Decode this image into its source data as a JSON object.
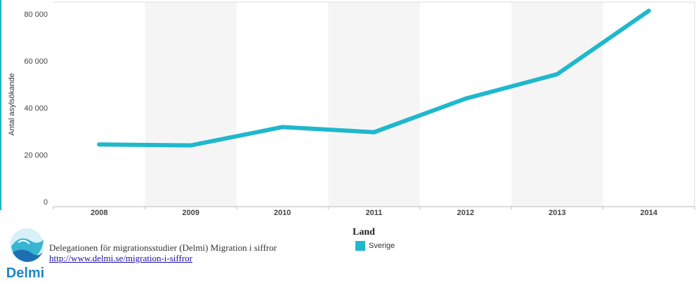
{
  "chart_data": {
    "type": "line",
    "categories": [
      "2008",
      "2009",
      "2010",
      "2011",
      "2012",
      "2013",
      "2014"
    ],
    "series": [
      {
        "name": "Sverige",
        "color": "#1fb8cd",
        "values": [
          24400,
          24000,
          31800,
          29600,
          43900,
          54300,
          81300
        ]
      }
    ],
    "ylabel": "Antal asylsökande",
    "ylim": [
      0,
      85000
    ],
    "yticks": [
      0,
      20000,
      40000,
      60000,
      80000
    ],
    "ytick_labels": [
      "0",
      "20 000",
      "40 000",
      "60 000",
      "80 000"
    ],
    "grid": "alternating vertical bands",
    "band_color": "#f5f5f5",
    "legend": {
      "title": "Land",
      "placement": "bottom-center"
    }
  },
  "footer": {
    "logo_text": "Delmi",
    "source_text": "Delegationen för migrationsstudier (Delmi) Migration i siffror",
    "source_link": "http://www.delmi.se/migration-i-siffror"
  }
}
